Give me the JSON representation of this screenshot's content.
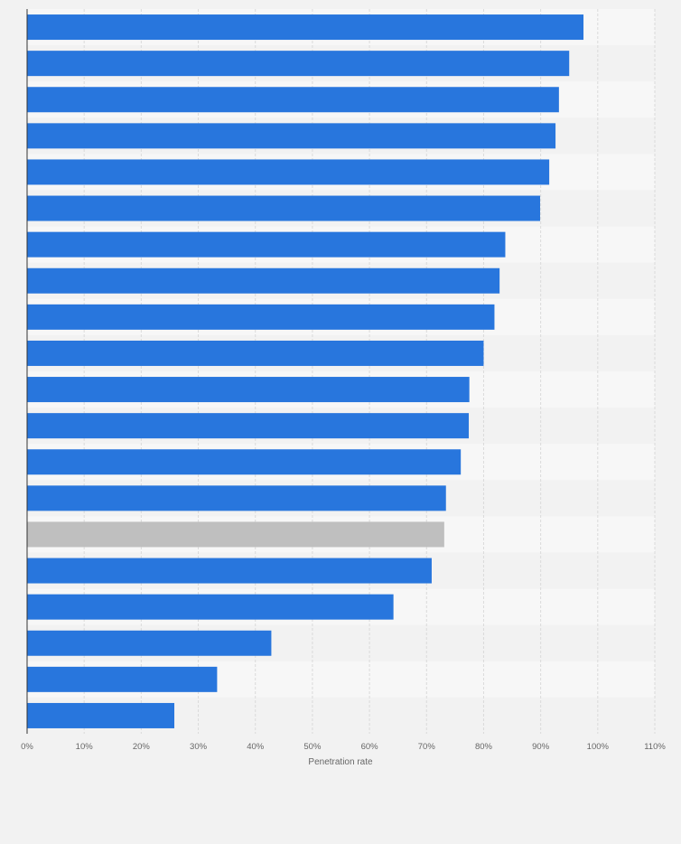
{
  "chart_data": {
    "type": "bar",
    "orientation": "horizontal",
    "xlabel": "Penetration rate",
    "ylabel": "",
    "xlim": [
      0,
      110
    ],
    "x_ticks": [
      0,
      10,
      20,
      30,
      40,
      50,
      60,
      70,
      80,
      90,
      100,
      110
    ],
    "x_tick_labels": [
      "0%",
      "10%",
      "20%",
      "30%",
      "40%",
      "50%",
      "60%",
      "70%",
      "80%",
      "90%",
      "100%",
      "110%"
    ],
    "values": [
      97.5,
      95,
      93.2,
      92.6,
      91.5,
      89.9,
      83.8,
      82.8,
      81.9,
      80,
      77.5,
      77.4,
      76,
      73.4,
      73.1,
      70.9,
      64.2,
      42.8,
      33.3,
      25.8
    ],
    "highlight_index": 14,
    "grid": true,
    "colors": {
      "bar": "#2876dd",
      "highlight_bar": "#bfbfbf",
      "band_light": "#f7f7f7",
      "band_dark": "#f2f2f2",
      "gridline": "#dadada",
      "axis": "#333333",
      "text": "#666666"
    }
  }
}
